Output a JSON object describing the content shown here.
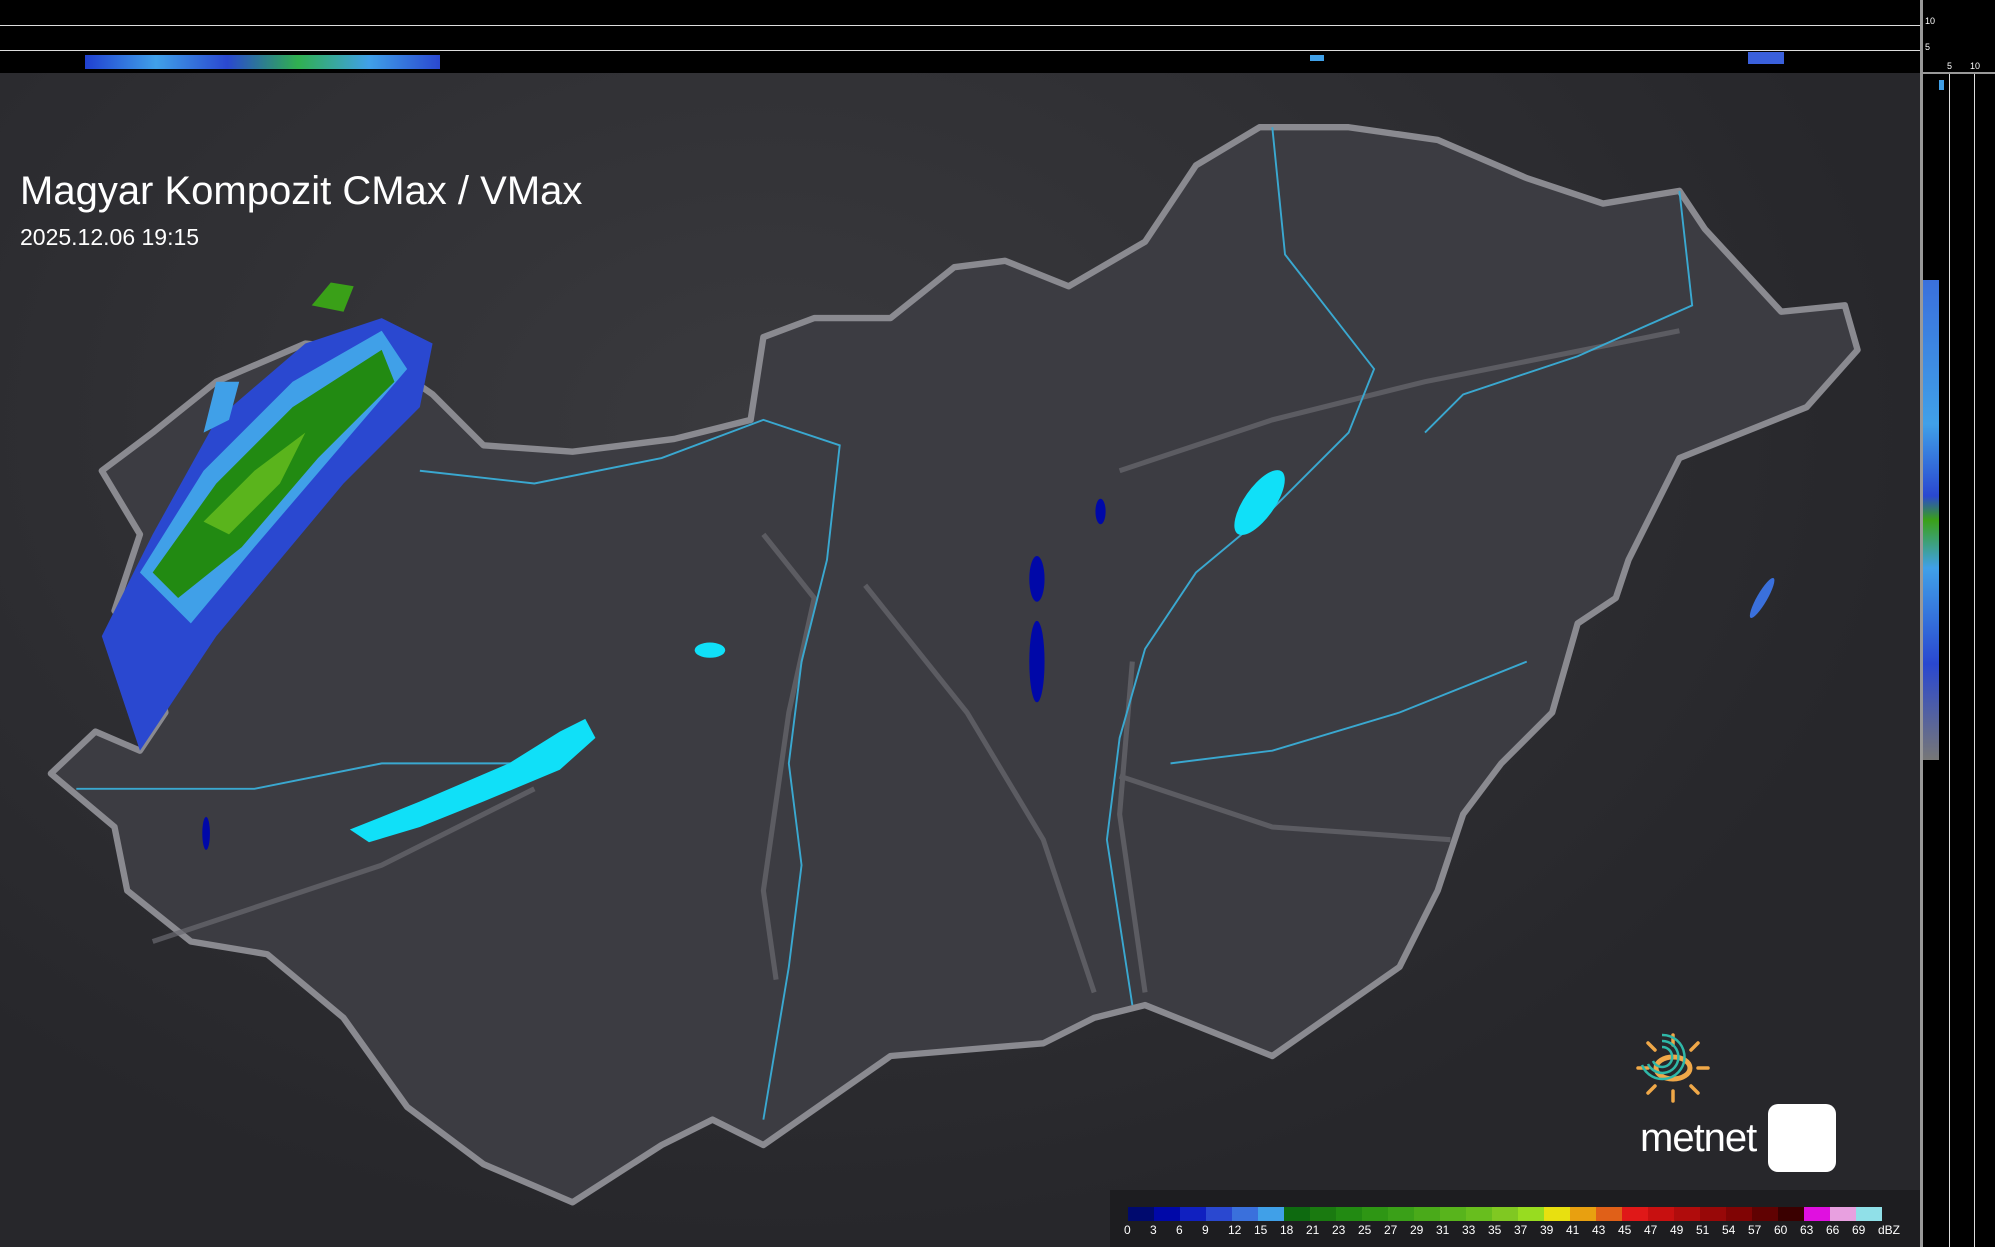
{
  "title": "Magyar Kompozit CMax / VMax",
  "timestamp": "2025.12.06 19:15",
  "top_profile": {
    "tick_labels": [
      "10",
      "5"
    ]
  },
  "side_profile": {
    "tick_labels": [
      "5",
      "10"
    ]
  },
  "logo": {
    "text": "metnet",
    "sun_color": "#f0a848",
    "app_icon": "spiral-icon",
    "app_color": "#2fb8a8"
  },
  "legend": {
    "unit": "dBZ",
    "labels": [
      "0",
      "3",
      "6",
      "9",
      "12",
      "15",
      "18",
      "21",
      "23",
      "25",
      "27",
      "29",
      "31",
      "33",
      "35",
      "37",
      "39",
      "41",
      "43",
      "45",
      "47",
      "49",
      "51",
      "54",
      "57",
      "60",
      "63",
      "66",
      "69"
    ],
    "colors": [
      "#000a6e",
      "#0008a8",
      "#1020c0",
      "#2a48d0",
      "#3a70dc",
      "#40a0e8",
      "#0e6a10",
      "#1a7a10",
      "#228a12",
      "#2e9614",
      "#3aa018",
      "#4aaa1a",
      "#58b41c",
      "#68be1e",
      "#80c822",
      "#98dc20",
      "#e8e010",
      "#e8a010",
      "#e06018",
      "#e01818",
      "#c81010",
      "#b00c0c",
      "#980808",
      "#800404",
      "#600202",
      "#3a0000",
      "#e010e0",
      "#e8a0e0",
      "#90e0e8"
    ]
  },
  "colors": {
    "border": "#8a8a90",
    "rivers": "#3aa8d0",
    "lakes": "#10e0f8",
    "country_fill": "#3c3c42"
  }
}
